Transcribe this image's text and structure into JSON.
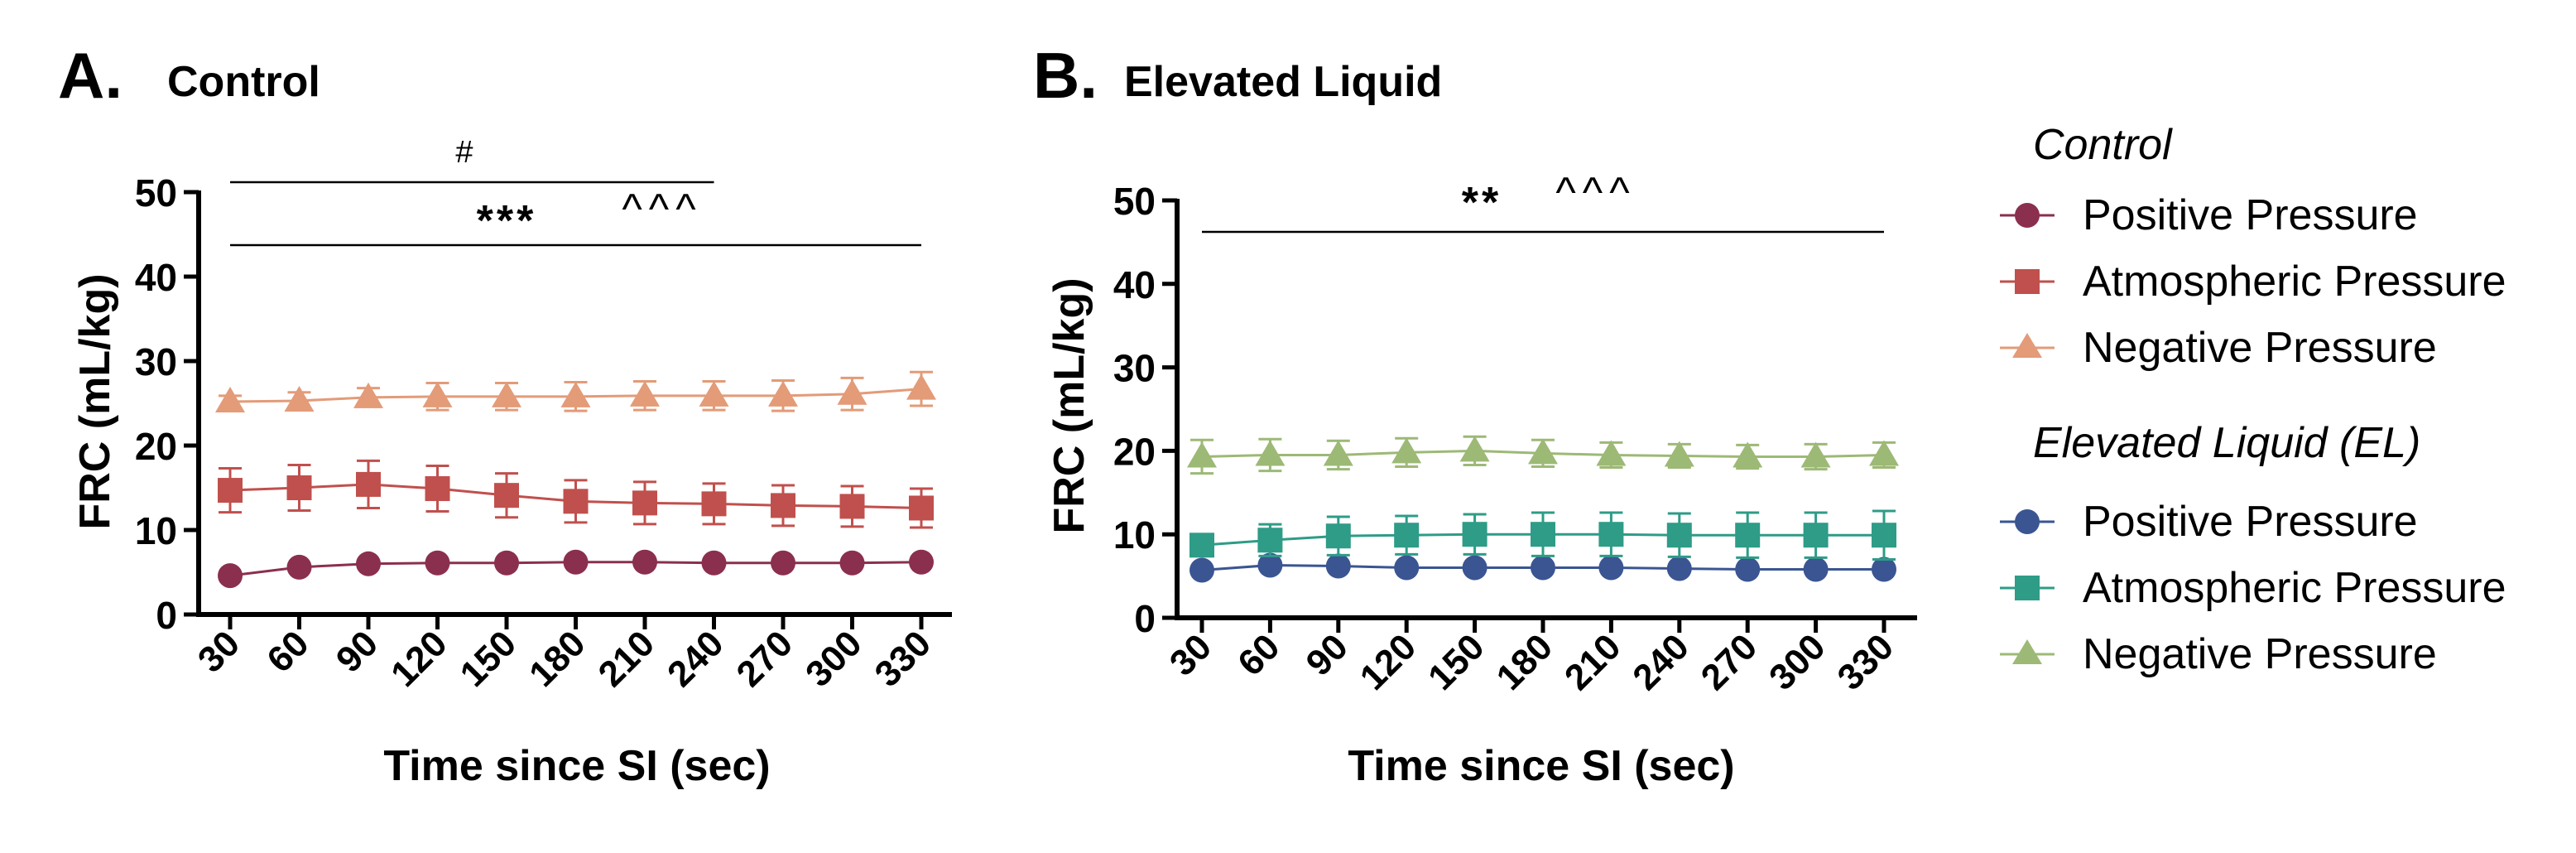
{
  "chart_data": [
    {
      "type": "line",
      "panel_letter": "A.",
      "title": "Control",
      "xlabel": "Time since SI (sec)",
      "ylabel": "FRC (mL/kg)",
      "ylim": [
        0,
        50
      ],
      "yticks": [
        0,
        10,
        20,
        30,
        40,
        50
      ],
      "x": [
        30,
        60,
        90,
        120,
        150,
        180,
        210,
        240,
        270,
        300,
        330
      ],
      "x_tick_labels": [
        "30",
        "60",
        "90",
        "120",
        "150",
        "180",
        "210",
        "240",
        "270",
        "300",
        "330"
      ],
      "grid": false,
      "series": [
        {
          "name": "Positive Pressure",
          "marker": "circle",
          "color": "#8B2F4F",
          "values": [
            4.6,
            5.6,
            6.0,
            6.1,
            6.1,
            6.2,
            6.2,
            6.1,
            6.1,
            6.1,
            6.2
          ],
          "error": [
            0.3,
            0.3,
            0.3,
            0.3,
            0.3,
            0.3,
            0.3,
            0.3,
            0.3,
            0.3,
            0.3
          ]
        },
        {
          "name": "Atmospheric Pressure",
          "marker": "square",
          "color": "#C0504D",
          "values": [
            14.7,
            15.0,
            15.4,
            14.9,
            14.1,
            13.4,
            13.2,
            13.1,
            12.9,
            12.8,
            12.6
          ],
          "error": [
            2.6,
            2.7,
            2.8,
            2.7,
            2.6,
            2.5,
            2.5,
            2.4,
            2.4,
            2.4,
            2.3
          ]
        },
        {
          "name": "Negative Pressure",
          "marker": "triangle",
          "color": "#E39B78",
          "values": [
            25.2,
            25.3,
            25.7,
            25.8,
            25.8,
            25.8,
            25.9,
            25.9,
            25.9,
            26.1,
            26.7
          ],
          "error": [
            0.7,
            1.0,
            1.1,
            1.6,
            1.6,
            1.7,
            1.7,
            1.7,
            1.8,
            1.9,
            2.0
          ]
        }
      ],
      "annotations": [
        {
          "text": "#",
          "x_from": 30,
          "x_to": 240,
          "y": 57
        },
        {
          "text": "***",
          "x_from": 30,
          "x_to": 330,
          "y": 44.5
        },
        {
          "text": "^^^",
          "x_from": null,
          "x_to": null,
          "y": 48.5
        }
      ]
    },
    {
      "type": "line",
      "panel_letter": "B.",
      "title": "Elevated Liquid",
      "xlabel": "Time since SI (sec)",
      "ylabel": "FRC (mL/kg)",
      "ylim": [
        0,
        50
      ],
      "yticks": [
        0,
        10,
        20,
        30,
        40,
        50
      ],
      "x": [
        30,
        60,
        90,
        120,
        150,
        180,
        210,
        240,
        270,
        300,
        330
      ],
      "x_tick_labels": [
        "30",
        "60",
        "90",
        "120",
        "150",
        "180",
        "210",
        "240",
        "270",
        "300",
        "330"
      ],
      "grid": false,
      "series": [
        {
          "name": "Positive Pressure",
          "marker": "circle",
          "color": "#3A5592",
          "values": [
            5.7,
            6.3,
            6.2,
            6.0,
            6.0,
            6.0,
            6.0,
            5.9,
            5.8,
            5.8,
            5.8
          ],
          "error": [
            0.3,
            0.3,
            0.3,
            0.3,
            0.3,
            0.3,
            0.3,
            0.3,
            0.3,
            0.3,
            0.3
          ]
        },
        {
          "name": "Atmospheric Pressure",
          "marker": "square",
          "color": "#2E9C87",
          "values": [
            8.7,
            9.3,
            9.8,
            9.9,
            10.0,
            10.0,
            10.0,
            9.9,
            9.9,
            9.9,
            9.9
          ],
          "error": [
            1.3,
            1.9,
            2.3,
            2.3,
            2.4,
            2.6,
            2.6,
            2.6,
            2.7,
            2.7,
            2.9
          ]
        },
        {
          "name": "Negative Pressure",
          "marker": "triangle",
          "color": "#9DB976",
          "values": [
            19.3,
            19.5,
            19.5,
            19.8,
            20.0,
            19.7,
            19.5,
            19.4,
            19.3,
            19.3,
            19.5
          ],
          "error": [
            2.0,
            1.9,
            1.7,
            1.7,
            1.7,
            1.6,
            1.5,
            1.4,
            1.4,
            1.5,
            1.5
          ]
        }
      ],
      "annotations": [
        {
          "text": "**",
          "x_from": 30,
          "x_to": 330,
          "y": 46.3
        },
        {
          "text": "^^^",
          "x_from": null,
          "x_to": null,
          "y": 50.5
        }
      ]
    }
  ],
  "legend": [
    {
      "group": "Control",
      "items": [
        {
          "label": "Positive Pressure",
          "marker": "circle",
          "color": "#8B2F4F"
        },
        {
          "label": "Atmospheric Pressure",
          "marker": "square",
          "color": "#C0504D"
        },
        {
          "label": "Negative Pressure",
          "marker": "triangle",
          "color": "#E39B78"
        }
      ]
    },
    {
      "group": "Elevated Liquid (EL)",
      "items": [
        {
          "label": "Positive Pressure",
          "marker": "circle",
          "color": "#3A5592"
        },
        {
          "label": "Atmospheric Pressure",
          "marker": "square",
          "color": "#2E9C87"
        },
        {
          "label": "Negative Pressure",
          "marker": "triangle",
          "color": "#9DB976"
        }
      ]
    }
  ]
}
